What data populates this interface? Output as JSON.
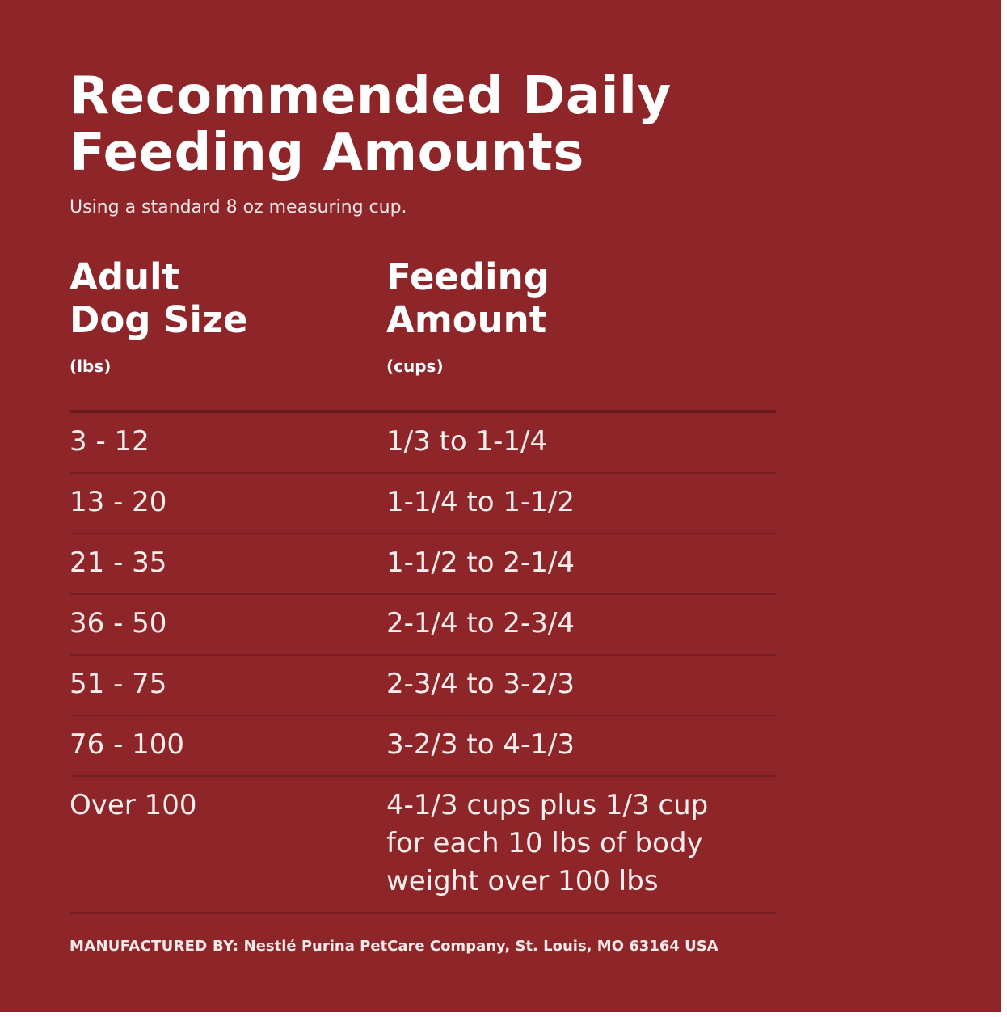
{
  "title": {
    "line1": "Recommended Daily",
    "line2": "Feeding Amounts"
  },
  "subtitle": "Using a standard 8 oz measuring cup.",
  "columns": [
    {
      "line1": "Adult",
      "line2": "Dog Size",
      "unit": "(lbs)"
    },
    {
      "line1": "Feeding",
      "line2": "Amount",
      "unit": "(cups)"
    }
  ],
  "rows": [
    {
      "size": "3 - 12",
      "amount": "1/3 to 1-1/4"
    },
    {
      "size": "13 - 20",
      "amount": "1-1/4 to 1-1/2"
    },
    {
      "size": "21 - 35",
      "amount": "1-1/2 to 2-1/4"
    },
    {
      "size": "36 - 50",
      "amount": "2-1/4 to 2-3/4"
    },
    {
      "size": "51 - 75",
      "amount": "2-3/4 to 3-2/3"
    },
    {
      "size": "76 - 100",
      "amount": "3-2/3 to 4-1/3"
    },
    {
      "size": "Over 100",
      "amount_lines": [
        "4-1/3 cups plus 1/3 cup",
        "for each 10 lbs of body",
        "weight over 100 lbs"
      ]
    }
  ],
  "footer": {
    "label": "MANUFACTURED BY:",
    "text": " Nestlé Purina PetCare Company, St. Louis, MO 63164 USA"
  },
  "colors": {
    "background": "#8e2629",
    "text": "#ffffff",
    "rule": "#761e21"
  }
}
